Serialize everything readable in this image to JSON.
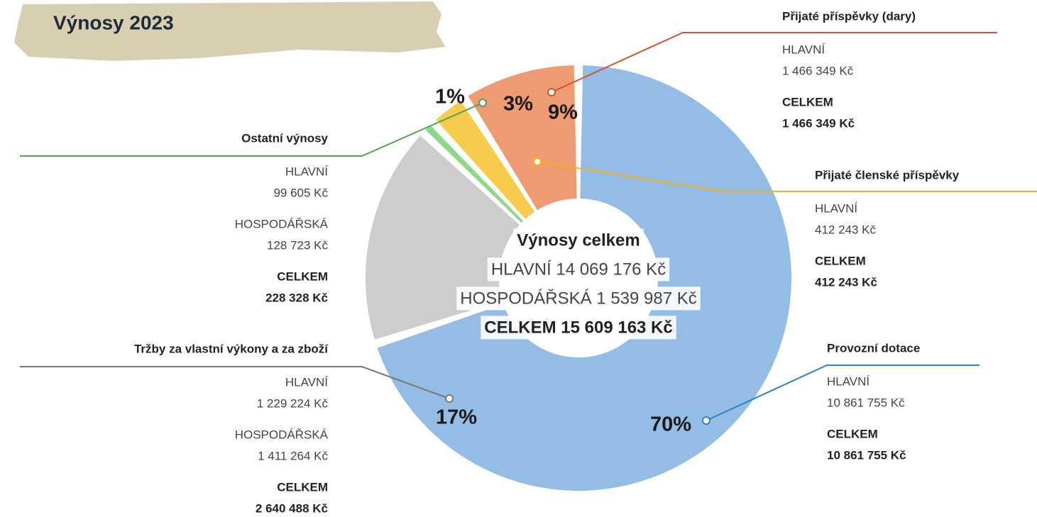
{
  "chart_data": {
    "type": "pie",
    "title": "Výnosy 2023",
    "categories": [
      "Provozní dotace",
      "Tržby za vlastní výkony a za zboží",
      "Ostatní výnosy",
      "Přijaté členské příspěvky",
      "Přijaté příspěvky (dary)"
    ],
    "values": [
      70,
      17,
      1,
      3,
      9
    ],
    "value_labels": [
      "70%",
      "17%",
      "1%",
      "3%",
      "9%"
    ],
    "colors": [
      "#94bde6",
      "#cdcdcd",
      "#8fd88a",
      "#f7cc4d",
      "#ee9a72"
    ],
    "line_colors": [
      "#2a86c5",
      "#7a7a7a",
      "#4aa84a",
      "#f2b316",
      "#d2532a"
    ],
    "center": {
      "title": "Výnosy celkem",
      "lines": [
        "HLAVNÍ 14 069 176 Kč",
        "HOSPODÁŘSKÁ 1 539 987 Kč"
      ],
      "total": "CELKEM 15 609 163 Kč"
    },
    "details": [
      {
        "rows": [
          [
            "HLAVNÍ",
            "10 861 755 Kč"
          ]
        ],
        "total": [
          "CELKEM",
          "10 861 755 Kč"
        ]
      },
      {
        "rows": [
          [
            "HLAVNÍ",
            "1 229 224 Kč"
          ],
          [
            "HOSPODÁŘSKÁ",
            "1 411 264 Kč"
          ]
        ],
        "total": [
          "CELKEM",
          "2 640 488 Kč"
        ]
      },
      {
        "rows": [
          [
            "HLAVNÍ",
            "99 605 Kč"
          ],
          [
            "HOSPODÁŘSKÁ",
            "128 723 Kč"
          ]
        ],
        "total": [
          "CELKEM",
          "228 328 Kč"
        ]
      },
      {
        "rows": [
          [
            "HLAVNÍ",
            "412 243 Kč"
          ]
        ],
        "total": [
          "CELKEM",
          "412 243 Kč"
        ]
      },
      {
        "rows": [
          [
            "HLAVNÍ",
            "1 466 349 Kč"
          ]
        ],
        "total": [
          "CELKEM",
          "1 466 349 Kč"
        ]
      }
    ]
  }
}
